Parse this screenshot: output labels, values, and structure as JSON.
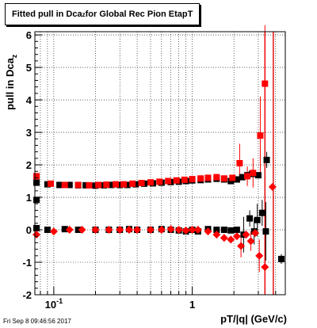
{
  "title": {
    "main": "Fitted pull in Dca",
    "sub": "z",
    "rest": " for Global Rec Pion EtapT"
  },
  "ylabel": {
    "main": "pull in Dca",
    "sub": "z"
  },
  "xlabel": "pT/|q| (GeV/c)",
  "datestamp": "Fri Sep  8 09:46:56 2017",
  "chart_data": {
    "type": "scatter",
    "xscale": "log",
    "xlim": [
      0.073,
      4.7
    ],
    "ylim": [
      -2,
      6.1
    ],
    "grid": true,
    "x_tick_labels": [
      "10^-1",
      "1"
    ],
    "y_tick_labels": [
      "-2",
      "-1",
      "0",
      "1",
      "2",
      "3",
      "4",
      "5",
      "6"
    ],
    "vertical_lines": [
      {
        "x": 3.35,
        "color": "#e00000"
      },
      {
        "x": 3.85,
        "color": "#e00000"
      }
    ],
    "colors": {
      "black_series": "#000000",
      "red_series": "#ff0000"
    },
    "series": [
      {
        "marker": "square",
        "color": "#000000",
        "points": [
          [
            0.075,
            1.45
          ],
          [
            0.09,
            1.4
          ],
          [
            0.11,
            1.38
          ],
          [
            0.13,
            1.38
          ],
          [
            0.15,
            1.37
          ],
          [
            0.17,
            1.37
          ],
          [
            0.2,
            1.36
          ],
          [
            0.23,
            1.37
          ],
          [
            0.26,
            1.38
          ],
          [
            0.3,
            1.38
          ],
          [
            0.34,
            1.38
          ],
          [
            0.39,
            1.4
          ],
          [
            0.45,
            1.42
          ],
          [
            0.52,
            1.43
          ],
          [
            0.6,
            1.45
          ],
          [
            0.7,
            1.47
          ],
          [
            0.8,
            1.48
          ],
          [
            0.9,
            1.5
          ],
          [
            1.0,
            1.52
          ],
          [
            1.15,
            1.53
          ],
          [
            1.3,
            1.55
          ],
          [
            1.5,
            1.57
          ],
          [
            1.7,
            1.55
          ],
          [
            1.9,
            1.5
          ],
          [
            2.1,
            1.55
          ],
          [
            2.3,
            1.62
          ],
          [
            2.5,
            1.68
          ],
          [
            2.7,
            1.72
          ],
          [
            3.0,
            1.68
          ],
          [
            3.45,
            2.15
          ],
          [
            0.075,
            0.92
          ],
          [
            0.075,
            0.05
          ],
          [
            0.09,
            0.0
          ],
          [
            0.12,
            0.02
          ],
          [
            0.15,
            0.0
          ],
          [
            0.2,
            0.0
          ],
          [
            0.25,
            0.0
          ],
          [
            0.3,
            0.0
          ],
          [
            0.35,
            0.02
          ],
          [
            0.4,
            0.0
          ],
          [
            0.5,
            0.0
          ],
          [
            0.6,
            0.02
          ],
          [
            0.7,
            0.0
          ],
          [
            0.8,
            -0.02
          ],
          [
            0.9,
            -0.05
          ],
          [
            1.0,
            0.0
          ],
          [
            1.1,
            -0.05
          ],
          [
            1.3,
            0.02
          ],
          [
            1.5,
            0.0
          ],
          [
            1.7,
            0.0
          ],
          [
            1.9,
            -0.02
          ],
          [
            2.1,
            0.0
          ],
          [
            2.35,
            -0.15
          ],
          [
            2.6,
            0.35
          ],
          [
            2.8,
            -0.05
          ],
          [
            2.95,
            0.3
          ],
          [
            3.2,
            0.52
          ],
          [
            3.4,
            -0.05
          ],
          [
            4.4,
            -0.9
          ]
        ],
        "errors_y": [
          [
            2.35,
            0.55
          ],
          [
            2.6,
            0.25
          ],
          [
            2.8,
            0.4
          ],
          [
            2.95,
            0.5
          ],
          [
            3.2,
            0.4
          ],
          [
            3.45,
            0.25
          ],
          [
            3.4,
            0.9
          ],
          [
            4.4,
            0.15
          ]
        ]
      },
      {
        "marker": "square",
        "color": "#ff0000",
        "points": [
          [
            0.075,
            1.65
          ],
          [
            0.095,
            1.42
          ],
          [
            0.12,
            1.38
          ],
          [
            0.15,
            1.38
          ],
          [
            0.18,
            1.37
          ],
          [
            0.21,
            1.38
          ],
          [
            0.24,
            1.39
          ],
          [
            0.28,
            1.4
          ],
          [
            0.32,
            1.4
          ],
          [
            0.37,
            1.42
          ],
          [
            0.43,
            1.44
          ],
          [
            0.5,
            1.46
          ],
          [
            0.58,
            1.48
          ],
          [
            0.67,
            1.5
          ],
          [
            0.77,
            1.52
          ],
          [
            0.88,
            1.54
          ],
          [
            1.0,
            1.56
          ],
          [
            1.15,
            1.58
          ],
          [
            1.3,
            1.6
          ],
          [
            1.5,
            1.62
          ],
          [
            1.7,
            1.58
          ],
          [
            1.95,
            1.6
          ],
          [
            2.2,
            2.05
          ],
          [
            2.5,
            1.65
          ],
          [
            2.75,
            1.75
          ],
          [
            3.1,
            2.9
          ],
          [
            3.35,
            4.5
          ]
        ],
        "errors_y": [
          [
            2.2,
            0.6
          ],
          [
            2.5,
            0.3
          ],
          [
            2.75,
            0.45
          ],
          [
            3.1,
            1.2
          ],
          [
            3.35,
            1.8
          ]
        ]
      },
      {
        "marker": "diamond",
        "color": "#ff0000",
        "points": [
          [
            0.075,
            -0.15
          ],
          [
            0.1,
            -0.05
          ],
          [
            0.13,
            0.0
          ],
          [
            0.16,
            0.0
          ],
          [
            0.2,
            0.0
          ],
          [
            0.25,
            0.0
          ],
          [
            0.3,
            0.0
          ],
          [
            0.35,
            0.0
          ],
          [
            0.4,
            0.0
          ],
          [
            0.5,
            0.0
          ],
          [
            0.6,
            0.0
          ],
          [
            0.7,
            0.02
          ],
          [
            0.8,
            0.0
          ],
          [
            0.9,
            -0.02
          ],
          [
            1.0,
            0.0
          ],
          [
            1.1,
            0.0
          ],
          [
            1.3,
            -0.05
          ],
          [
            1.5,
            -0.15
          ],
          [
            1.7,
            -0.25
          ],
          [
            1.9,
            -0.3
          ],
          [
            2.1,
            -0.2
          ],
          [
            2.25,
            -0.5
          ],
          [
            2.45,
            -0.15
          ],
          [
            2.65,
            -0.35
          ],
          [
            2.85,
            -0.1
          ],
          [
            3.05,
            -0.8
          ],
          [
            3.35,
            -1.15
          ],
          [
            3.8,
            1.32
          ]
        ],
        "errors_y": [
          [
            2.25,
            0.35
          ],
          [
            2.65,
            0.3
          ],
          [
            3.05,
            0.5
          ],
          [
            3.35,
            0.6
          ]
        ]
      }
    ]
  }
}
